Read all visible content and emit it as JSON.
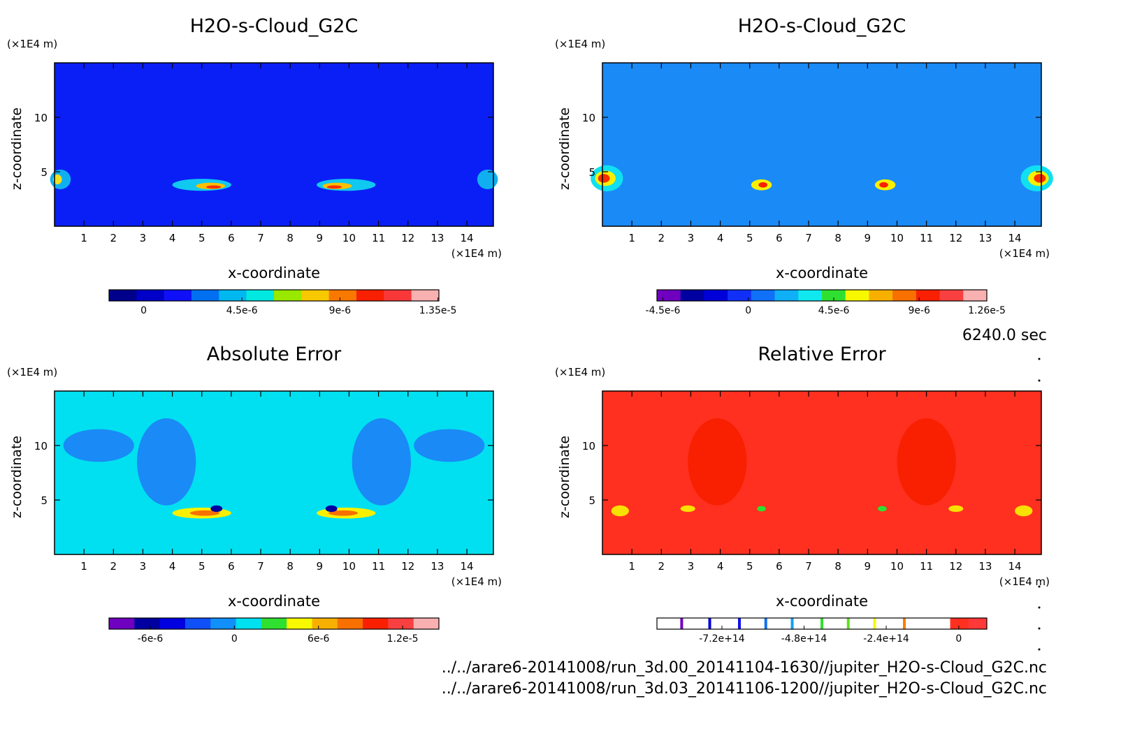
{
  "chart_data": [
    {
      "type": "heatmap",
      "title": "H2O-s-Cloud_G2C",
      "xlabel": "x-coordinate",
      "ylabel": "z-coordinate",
      "x_unit": "(×1E4 m)",
      "y_unit": "(×1E4 m)",
      "x_ticks": [
        "1",
        "2",
        "3",
        "4",
        "5",
        "6",
        "7",
        "8",
        "9",
        "10",
        "11",
        "12",
        "13",
        "14"
      ],
      "y_ticks": [
        "5",
        "10"
      ],
      "xlim": [
        0,
        14.9
      ],
      "ylim": [
        0,
        15
      ],
      "background": "#0a1ff5",
      "colorbar": {
        "colors": [
          "#00008b",
          "#0000c8",
          "#1010f8",
          "#0070f0",
          "#00b8f0",
          "#00e8e0",
          "#98e800",
          "#f8c800",
          "#f87800",
          "#f82000",
          "#f83838",
          "#f8b0b0"
        ],
        "tick_labels": [
          "0",
          "4.5e-6",
          "9e-6",
          "1.35e-5"
        ],
        "tick_fracs": [
          0.105,
          0.403,
          0.7,
          0.997
        ]
      }
    },
    {
      "type": "heatmap",
      "title": "H2O-s-Cloud_G2C",
      "xlabel": "x-coordinate",
      "ylabel": "z-coordinate",
      "x_unit": "(×1E4 m)",
      "y_unit": "(×1E4 m)",
      "x_ticks": [
        "1",
        "2",
        "3",
        "4",
        "5",
        "6",
        "7",
        "8",
        "9",
        "10",
        "11",
        "12",
        "13",
        "14"
      ],
      "y_ticks": [
        "5",
        "10"
      ],
      "xlim": [
        0,
        14.9
      ],
      "ylim": [
        0,
        15
      ],
      "background": "#1a8af6",
      "colorbar": {
        "colors": [
          "#7000c0",
          "#0000a0",
          "#0000d8",
          "#1030f8",
          "#1070f8",
          "#10b0f8",
          "#10e8f0",
          "#30e030",
          "#f8f800",
          "#f8b000",
          "#f87000",
          "#f82000",
          "#f84040",
          "#f8b0b0"
        ],
        "tick_labels": [
          "-4.5e-6",
          "0",
          "4.5e-6",
          "9e-6",
          "1.26e-5"
        ],
        "tick_fracs": [
          0.018,
          0.277,
          0.536,
          0.795,
          1.0
        ]
      }
    },
    {
      "type": "heatmap",
      "title": "Absolute Error",
      "xlabel": "x-coordinate",
      "ylabel": "z-coordinate",
      "x_unit": "(×1E4 m)",
      "y_unit": "(×1E4 m)",
      "x_ticks": [
        "1",
        "2",
        "3",
        "4",
        "5",
        "6",
        "7",
        "8",
        "9",
        "10",
        "11",
        "12",
        "13",
        "14"
      ],
      "y_ticks": [
        "5",
        "10"
      ],
      "xlim": [
        0,
        14.9
      ],
      "ylim": [
        0,
        15
      ],
      "background": "#00e0f0",
      "colorbar": {
        "colors": [
          "#7000c0",
          "#0000a0",
          "#0000e0",
          "#1050f8",
          "#1090f8",
          "#00e0f0",
          "#30e030",
          "#f8f800",
          "#f8b000",
          "#f87000",
          "#f82000",
          "#f84040",
          "#f8b0b0"
        ],
        "tick_labels": [
          "-6e-6",
          "0",
          "6e-6",
          "1.2e-5"
        ],
        "tick_fracs": [
          0.125,
          0.38,
          0.635,
          0.89
        ]
      }
    },
    {
      "type": "heatmap",
      "title": "Relative Error",
      "xlabel": "x-coordinate",
      "ylabel": "z-coordinate",
      "x_unit": "(×1E4 m)",
      "y_unit": "(×1E4 m)",
      "x_ticks": [
        "1",
        "2",
        "3",
        "4",
        "5",
        "6",
        "7",
        "8",
        "9",
        "10",
        "11",
        "12",
        "13",
        "14"
      ],
      "y_ticks": [
        "5",
        "10"
      ],
      "xlim": [
        0,
        14.9
      ],
      "ylim": [
        0,
        15
      ],
      "background": "#ff3020",
      "colorbar": {
        "colors": [
          "#ffffff",
          "#ffffff",
          "#ffffff",
          "#ffffff",
          "#ffffff",
          "#ffffff",
          "#ffffff",
          "#ffffff",
          "#ffffff",
          "#ffffff",
          "#ffffff",
          "#ffffff",
          "#ffffff",
          "#ffffff",
          "#ffffff",
          "#ffffff",
          "#ff3020",
          "#ff3838"
        ],
        "stripes": [
          {
            "frac": 0.075,
            "color": "#7000c0"
          },
          {
            "frac": 0.16,
            "color": "#0000d8"
          },
          {
            "frac": 0.25,
            "color": "#1010f0"
          },
          {
            "frac": 0.33,
            "color": "#1070f0"
          },
          {
            "frac": 0.41,
            "color": "#10a0f0"
          },
          {
            "frac": 0.5,
            "color": "#30e030"
          },
          {
            "frac": 0.58,
            "color": "#60e020"
          },
          {
            "frac": 0.66,
            "color": "#f8f800"
          },
          {
            "frac": 0.75,
            "color": "#f88000"
          }
        ],
        "tick_labels": [
          "-7.2e+14",
          "-4.8e+14",
          "-2.4e+14",
          "0"
        ],
        "tick_fracs": [
          0.197,
          0.446,
          0.695,
          0.915
        ]
      }
    }
  ],
  "footer": {
    "time": "6240.0 sec",
    "file1": "../../arare6-20141008/run_3d.00_20141104-1630//jupiter_H2O-s-Cloud_G2C.nc",
    "file2": "../../arare6-20141008/run_3d.03_20141106-1200//jupiter_H2O-s-Cloud_G2C.nc"
  }
}
